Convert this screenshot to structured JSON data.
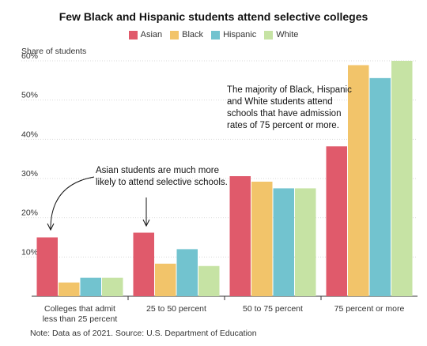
{
  "chart_data": {
    "type": "bar",
    "title": "Few Black and Hispanic students attend selective colleges",
    "ylabel": "Share of students",
    "xlabel": "",
    "ylim": [
      0,
      60
    ],
    "yticks": [
      "10%",
      "20%",
      "30%",
      "40%",
      "50%",
      "60%"
    ],
    "grid": true,
    "legend_placement": "top-center",
    "categories": [
      "Colleges that admit\nless than 25 percent",
      "25 to 50 percent",
      "50 to 75 percent",
      "75 percent or more"
    ],
    "series": [
      {
        "name": "Asian",
        "color": "#e05a6b",
        "values": [
          15,
          16.2,
          30.6,
          38.2
        ]
      },
      {
        "name": "Black",
        "color": "#f2c46a",
        "values": [
          3.5,
          8.3,
          29.2,
          58.9
        ]
      },
      {
        "name": "Hispanic",
        "color": "#72c3cf",
        "values": [
          4.7,
          12,
          27.5,
          55.6
        ]
      },
      {
        "name": "White",
        "color": "#c6e3a4",
        "values": [
          4.7,
          7.7,
          27.5,
          60
        ]
      }
    ],
    "annotations": [
      "The majority of Black, Hispanic\nand White students attend\nschools that have admission\nrates of 75 percent or more.",
      "Asian students are much more\nlikely to attend selective schools."
    ],
    "note": "Note: Data as of 2021. Source: U.S. Department of Education"
  }
}
